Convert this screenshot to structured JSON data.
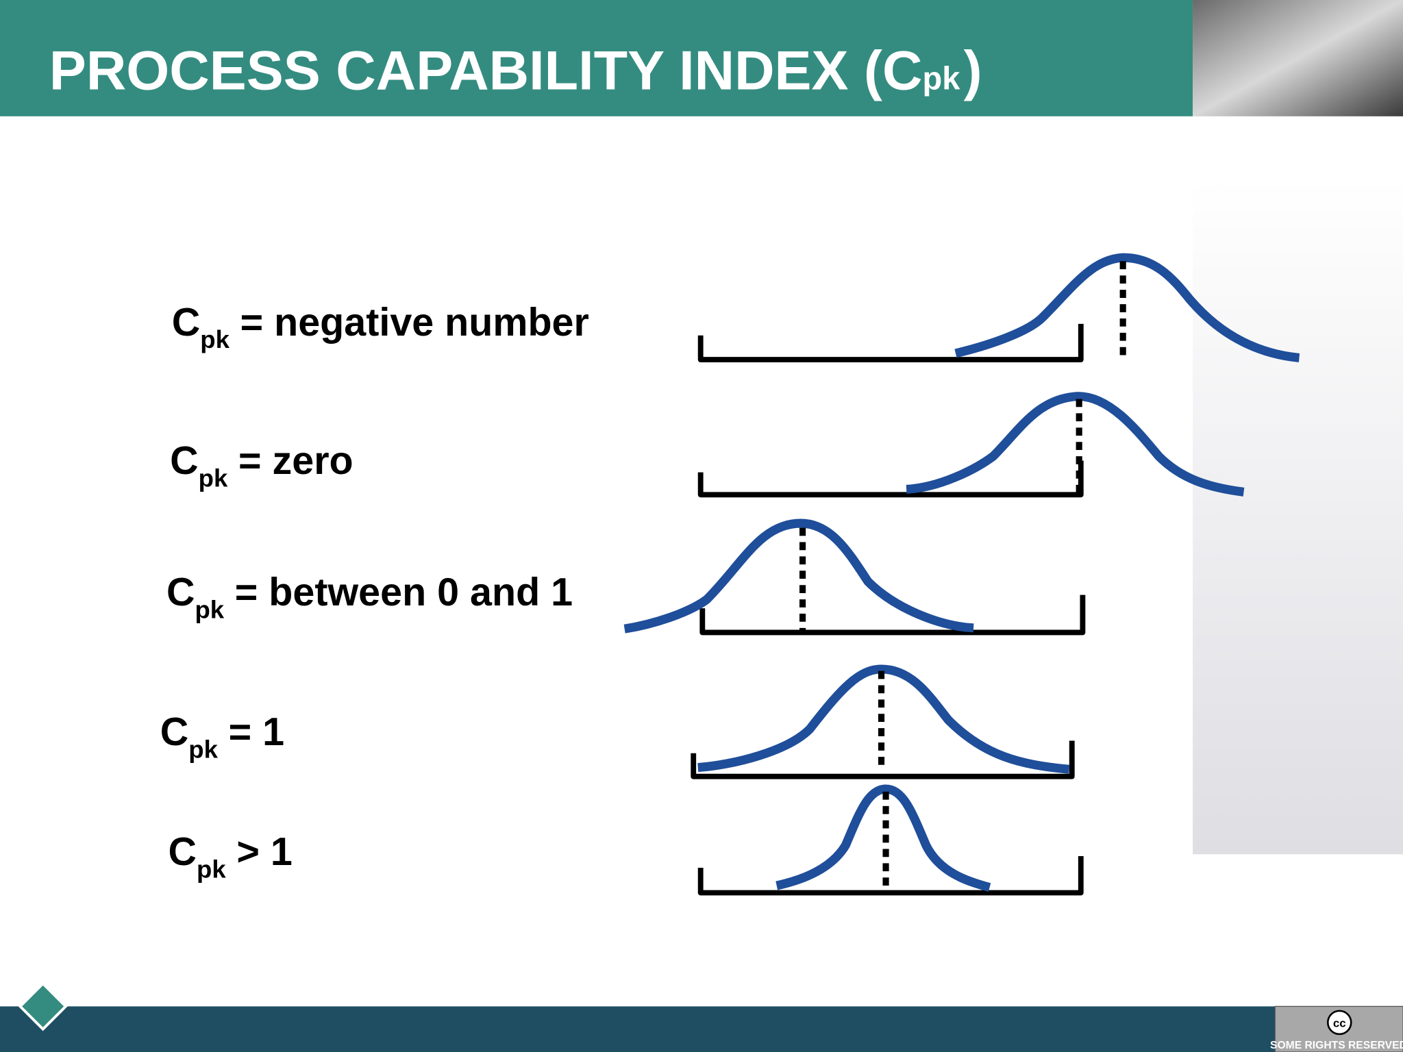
{
  "header": {
    "title": "PROCESS CAPABILITY INDEX (C",
    "title_subscript": "pk",
    "title_end": ")"
  },
  "rows": [
    {
      "symbol": "C",
      "subscript": "pk",
      "text": "= negative number"
    },
    {
      "symbol": "C",
      "subscript": "pk",
      "text": "= zero"
    },
    {
      "symbol": "C",
      "subscript": "pk",
      "text": "= between 0 and 1"
    },
    {
      "symbol": "C",
      "subscript": "pk",
      "text": "= 1"
    },
    {
      "symbol": "C",
      "subscript": "pk",
      "text": "> 1"
    }
  ],
  "footer": {
    "badge_icon": "cc",
    "badge_text": "SOME RIGHTS RESERVED"
  }
}
